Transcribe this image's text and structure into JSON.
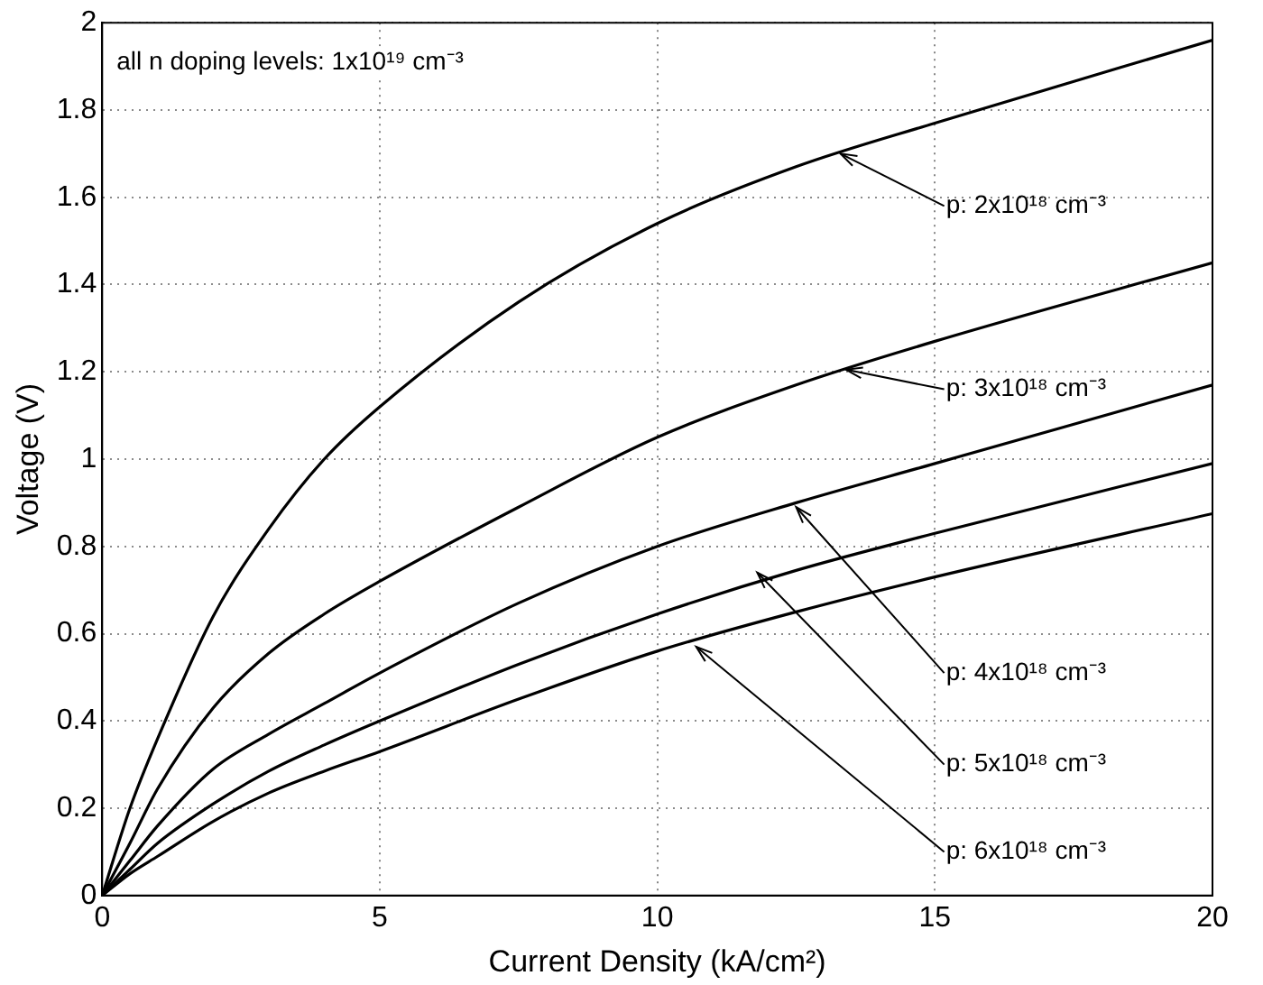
{
  "chart_data": {
    "type": "line",
    "xlabel": "Current Density (kA/cm²)",
    "ylabel": "Voltage (V)",
    "x": [
      0,
      0.5,
      1,
      2,
      3,
      4,
      5,
      7.5,
      10,
      12.5,
      15,
      20
    ],
    "series": [
      {
        "color": "#000000",
        "values": [
          0,
          0.2,
          0.36,
          0.64,
          0.84,
          1.0,
          1.12,
          1.36,
          1.54,
          1.67,
          1.77,
          1.96
        ]
      },
      {
        "color": "#000000",
        "values": [
          0,
          0.12,
          0.245,
          0.43,
          0.555,
          0.645,
          0.72,
          0.89,
          1.05,
          1.17,
          1.27,
          1.45
        ]
      },
      {
        "color": "#000000",
        "values": [
          0,
          0.08,
          0.16,
          0.29,
          0.37,
          0.44,
          0.51,
          0.67,
          0.8,
          0.9,
          0.99,
          1.17
        ]
      },
      {
        "color": "#000000",
        "values": [
          0,
          0.06,
          0.12,
          0.21,
          0.285,
          0.345,
          0.4,
          0.53,
          0.645,
          0.745,
          0.83,
          0.99
        ]
      },
      {
        "color": "#000000",
        "values": [
          0,
          0.05,
          0.09,
          0.17,
          0.235,
          0.285,
          0.33,
          0.45,
          0.56,
          0.65,
          0.73,
          0.875
        ]
      }
    ],
    "xlim": [
      0,
      20
    ],
    "xticks": [
      0,
      5,
      10,
      15,
      20
    ],
    "ylim": [
      0,
      2
    ],
    "yticks": [
      0,
      0.2,
      0.4,
      0.6,
      0.8,
      1,
      1.2,
      1.4,
      1.6,
      1.8,
      2
    ],
    "grid": true,
    "legend": false,
    "marker": "none",
    "line_style": "solid",
    "annotations": [
      "all n doping levels: 1x10¹⁹ cm⁻³",
      {
        "text": "p: 2x10¹⁸ cm⁻³",
        "x": 13.3,
        "y": 1.7
      },
      {
        "text": "p: 3x10¹⁸ cm⁻³",
        "x": 13.4,
        "y": 1.205
      },
      {
        "text": "p: 4x10¹⁸ cm⁻³",
        "x": 12.5,
        "y": 0.89
      },
      {
        "text": "p: 5x10¹⁸ cm⁻³",
        "x": 11.8,
        "y": 0.74
      },
      {
        "text": "p: 6x10¹⁸ cm⁻³",
        "x": 10.7,
        "y": 0.57
      }
    ]
  }
}
